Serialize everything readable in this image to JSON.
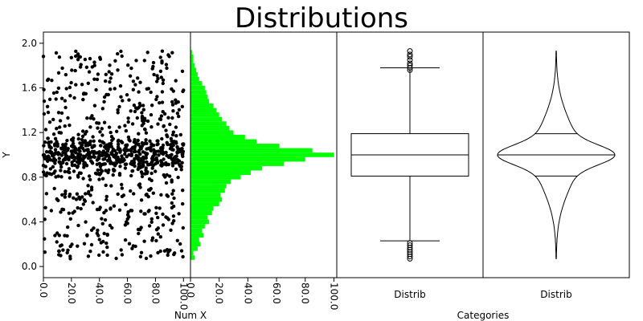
{
  "chart_data": {
    "title": "Distributions",
    "ylabel": "Y",
    "ylim": [
      -0.1,
      2.1
    ],
    "yticks": [
      0.0,
      0.4,
      0.8,
      1.2,
      1.6,
      2.0
    ],
    "ytick_labels": [
      "0.0",
      "0.4",
      "0.8",
      "1.2",
      "1.6",
      "2.0"
    ],
    "panels": [
      {
        "type": "scatter",
        "xlabel": "Num X",
        "xlim": [
          0,
          105
        ],
        "xticks": [
          0,
          20,
          40,
          60,
          80,
          100
        ],
        "xtick_labels": [
          "0.0",
          "20.0",
          "40.0",
          "60.0",
          "80.0",
          "100.0"
        ],
        "point_count": 1000,
        "x_range": [
          0,
          100
        ],
        "y_distribution": {
          "center": 1.0,
          "min": 0.07,
          "max": 1.93
        }
      },
      {
        "type": "bar",
        "orientation": "horizontal",
        "xlim": [
          0,
          102
        ],
        "xticks": [
          0,
          20,
          40,
          60,
          80,
          100
        ],
        "xtick_labels": [
          "0.0",
          "20.0",
          "40.0",
          "60.0",
          "80.0",
          "100.0"
        ],
        "color": "#00ff00",
        "bin_width": 0.04,
        "bins": [
          {
            "y": 0.08,
            "count": 3
          },
          {
            "y": 0.12,
            "count": 2
          },
          {
            "y": 0.16,
            "count": 5
          },
          {
            "y": 0.2,
            "count": 7
          },
          {
            "y": 0.24,
            "count": 6
          },
          {
            "y": 0.28,
            "count": 9
          },
          {
            "y": 0.32,
            "count": 8
          },
          {
            "y": 0.36,
            "count": 10
          },
          {
            "y": 0.4,
            "count": 13
          },
          {
            "y": 0.44,
            "count": 12
          },
          {
            "y": 0.48,
            "count": 15
          },
          {
            "y": 0.52,
            "count": 16
          },
          {
            "y": 0.56,
            "count": 20
          },
          {
            "y": 0.6,
            "count": 22
          },
          {
            "y": 0.64,
            "count": 21
          },
          {
            "y": 0.68,
            "count": 24
          },
          {
            "y": 0.72,
            "count": 25
          },
          {
            "y": 0.76,
            "count": 28
          },
          {
            "y": 0.8,
            "count": 35
          },
          {
            "y": 0.84,
            "count": 42
          },
          {
            "y": 0.88,
            "count": 50
          },
          {
            "y": 0.92,
            "count": 65
          },
          {
            "y": 0.96,
            "count": 80
          },
          {
            "y": 1.0,
            "count": 100
          },
          {
            "y": 1.04,
            "count": 85
          },
          {
            "y": 1.08,
            "count": 62
          },
          {
            "y": 1.12,
            "count": 46
          },
          {
            "y": 1.16,
            "count": 38
          },
          {
            "y": 1.2,
            "count": 30
          },
          {
            "y": 1.24,
            "count": 27
          },
          {
            "y": 1.28,
            "count": 25
          },
          {
            "y": 1.32,
            "count": 22
          },
          {
            "y": 1.36,
            "count": 20
          },
          {
            "y": 1.4,
            "count": 18
          },
          {
            "y": 1.44,
            "count": 16
          },
          {
            "y": 1.48,
            "count": 13
          },
          {
            "y": 1.52,
            "count": 12
          },
          {
            "y": 1.56,
            "count": 11
          },
          {
            "y": 1.6,
            "count": 10
          },
          {
            "y": 1.64,
            "count": 8
          },
          {
            "y": 1.68,
            "count": 6
          },
          {
            "y": 1.72,
            "count": 5
          },
          {
            "y": 1.76,
            "count": 4
          },
          {
            "y": 1.8,
            "count": 3
          },
          {
            "y": 1.84,
            "count": 2
          },
          {
            "y": 1.88,
            "count": 2
          },
          {
            "y": 1.92,
            "count": 1
          }
        ]
      },
      {
        "type": "box",
        "category": "Distrib",
        "min": 0.23,
        "q1": 0.81,
        "median": 1.0,
        "q3": 1.19,
        "max": 1.78,
        "outliers_low": [
          0.07,
          0.09,
          0.11,
          0.13,
          0.15,
          0.17,
          0.19,
          0.21
        ],
        "outliers_high": [
          1.76,
          1.78,
          1.8,
          1.82,
          1.85,
          1.88,
          1.9,
          1.93
        ]
      },
      {
        "type": "violin",
        "category": "Distrib",
        "min": 0.07,
        "q1": 0.81,
        "median": 1.0,
        "q3": 1.19,
        "max": 1.93
      }
    ],
    "category_axis_label": "Categories"
  }
}
